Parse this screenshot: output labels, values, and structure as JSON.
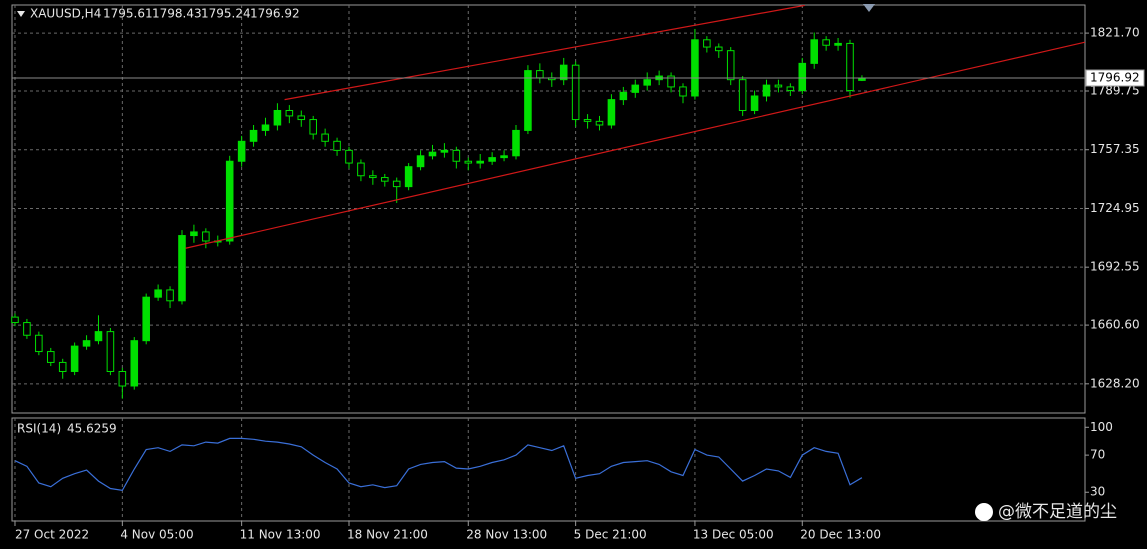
{
  "chart_data": [
    {
      "type": "candlestick",
      "title": "XAUUSD,H4",
      "color": "#00e000",
      "grid": true,
      "open": [
        1665,
        1662,
        1655,
        1646,
        1640,
        1635,
        1649,
        1652,
        1657,
        1635,
        1627,
        1652,
        1676,
        1680,
        1674,
        1710,
        1712,
        1707,
        1707,
        1751,
        1762,
        1768,
        1771,
        1779,
        1776,
        1774,
        1766,
        1762,
        1757,
        1750,
        1743,
        1742,
        1740,
        1737,
        1748,
        1754,
        1756,
        1757,
        1751,
        1750,
        1751,
        1753,
        1754,
        1768,
        1801,
        1797,
        1796,
        1804,
        1774,
        1773,
        1771,
        1785,
        1789,
        1793,
        1796,
        1798,
        1792,
        1787,
        1818,
        1814,
        1812,
        1796,
        1779,
        1787,
        1793,
        1792,
        1790,
        1805,
        1818,
        1815,
        1816,
        1795.61
      ],
      "high": [
        1667,
        1664,
        1657,
        1648,
        1642,
        1651,
        1655,
        1666,
        1659,
        1637,
        1654,
        1678,
        1683,
        1682,
        1713,
        1716,
        1714,
        1710,
        1754,
        1765,
        1771,
        1775,
        1783,
        1782,
        1779,
        1776,
        1769,
        1764,
        1759,
        1752,
        1746,
        1744,
        1742,
        1750,
        1757,
        1760,
        1761,
        1759,
        1753,
        1755,
        1756,
        1757,
        1771,
        1804,
        1805,
        1800,
        1808,
        1806,
        1777,
        1776,
        1788,
        1792,
        1796,
        1800,
        1801,
        1800,
        1794,
        1824,
        1820,
        1816,
        1814,
        1798,
        1790,
        1796,
        1796,
        1794,
        1808,
        1822,
        1820,
        1819,
        1818,
        1798.43
      ],
      "low": [
        1660,
        1653,
        1644,
        1638,
        1631,
        1633,
        1647,
        1650,
        1633,
        1620,
        1625,
        1650,
        1674,
        1670,
        1672,
        1706,
        1703,
        1704,
        1705,
        1748,
        1759,
        1765,
        1768,
        1772,
        1770,
        1763,
        1759,
        1754,
        1747,
        1740,
        1738,
        1737,
        1728,
        1735,
        1746,
        1752,
        1753,
        1747,
        1746,
        1747,
        1749,
        1751,
        1752,
        1766,
        1794,
        1792,
        1793,
        1770,
        1769,
        1768,
        1769,
        1782,
        1786,
        1790,
        1793,
        1789,
        1783,
        1785,
        1811,
        1808,
        1793,
        1776,
        1777,
        1784,
        1789,
        1787,
        1788,
        1802,
        1812,
        1812,
        1786,
        1795.24
      ],
      "close": [
        1662,
        1655,
        1646,
        1640,
        1635,
        1649,
        1652,
        1657,
        1635,
        1627,
        1652,
        1676,
        1680,
        1674,
        1710,
        1712,
        1707,
        1707,
        1751,
        1762,
        1768,
        1771,
        1779,
        1776,
        1774,
        1766,
        1762,
        1757,
        1750,
        1743,
        1742,
        1740,
        1737,
        1748,
        1754,
        1756,
        1757,
        1751,
        1750,
        1751,
        1753,
        1754,
        1768,
        1801,
        1797,
        1796,
        1804,
        1774,
        1773,
        1771,
        1785,
        1789,
        1793,
        1796,
        1798,
        1792,
        1787,
        1818,
        1814,
        1812,
        1796,
        1779,
        1787,
        1793,
        1792,
        1790,
        1805,
        1818,
        1815,
        1816,
        1790,
        1796.92
      ],
      "xlim": [
        -0.25,
        89.7
      ],
      "xticks": [
        {
          "value": 0,
          "label": "27 Oct 2022"
        },
        {
          "value": 9,
          "label": "4 Nov 05:00"
        },
        {
          "value": 19,
          "label": "11 Nov 13:00"
        },
        {
          "value": 28,
          "label": "18 Nov 21:00"
        },
        {
          "value": 38,
          "label": "28 Nov 13:00"
        },
        {
          "value": 47,
          "label": "5 Dec 21:00"
        },
        {
          "value": 57,
          "label": "13 Dec 05:00"
        },
        {
          "value": 66,
          "label": "20 Dec 13:00"
        }
      ],
      "ylim": [
        1612.1,
        1837.2
      ],
      "yticks": [
        {
          "value": 1821.7,
          "label": "1821.70"
        },
        {
          "value": 1789.75,
          "label": "1789.75"
        },
        {
          "value": 1757.35,
          "label": "1757.35"
        },
        {
          "value": 1724.95,
          "label": "1724.95"
        },
        {
          "value": 1692.55,
          "label": "1692.55"
        },
        {
          "value": 1660.6,
          "label": "1660.60"
        },
        {
          "value": 1628.2,
          "label": "1628.20"
        }
      ],
      "trendlines": [
        {
          "color": "#d01818",
          "points": [
            {
              "x": 22.6,
              "y": 1785
            },
            {
              "x": 66.2,
              "y": 1837
            }
          ]
        },
        {
          "color": "#d01818",
          "points": [
            {
              "x": 14.3,
              "y": 1703
            },
            {
              "x": 89.7,
              "y": 1816.7
            }
          ]
        }
      ]
    },
    {
      "type": "line",
      "title": "RSI(14)",
      "color": "#3a6fd8",
      "values": [
        64,
        58,
        40,
        36,
        45,
        50,
        54,
        42,
        34,
        32,
        55,
        76,
        78,
        74,
        81,
        80,
        84,
        83,
        88,
        88,
        87,
        85,
        84,
        82,
        79,
        70,
        62,
        55,
        40,
        36,
        38,
        35,
        37,
        55,
        60,
        62,
        63,
        56,
        55,
        58,
        62,
        65,
        70,
        81,
        78,
        75,
        80,
        45,
        48,
        50,
        58,
        62,
        63,
        64,
        60,
        52,
        48,
        76,
        70,
        68,
        55,
        42,
        48,
        55,
        53,
        46,
        70,
        78,
        74,
        72,
        38,
        45.6259
      ],
      "xlim": [
        -0.25,
        89.7
      ],
      "ylim": [
        -1,
        110
      ],
      "yticks": [
        100,
        70,
        30
      ]
    }
  ],
  "watermark": "@微不足道的尘"
}
